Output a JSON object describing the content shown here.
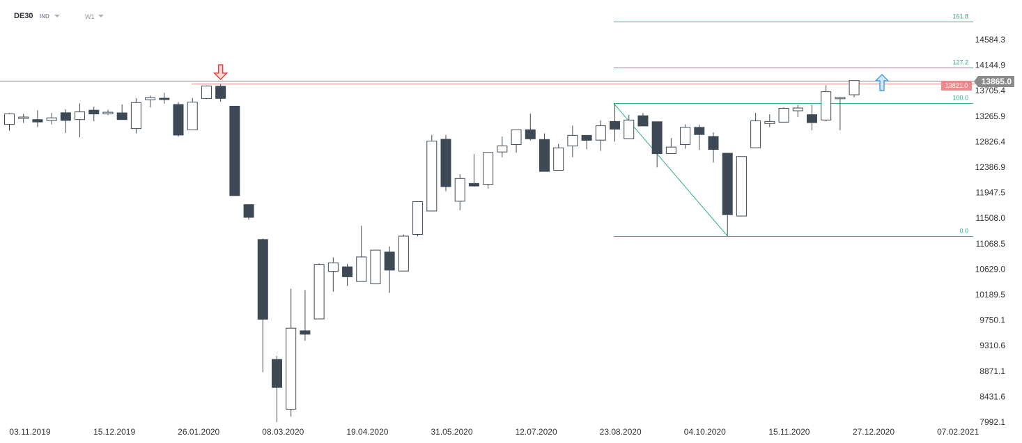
{
  "toolbar": {
    "symbol": "DE30",
    "instrument_type": "IND",
    "timeframe": "W1"
  },
  "price_badges": {
    "current": "13865.0",
    "level": "13821.0"
  },
  "colors": {
    "bear": "#3d4a56",
    "bull": "#ffffff",
    "fib": "#2bb17a",
    "level_line": "#e8858a",
    "current_line": "#888888",
    "current_badge": "#8a8a8a",
    "level_badge": "#ee8a8c",
    "down_arrow": "#e0463f",
    "up_arrow": "#4a9fe8"
  },
  "chart_data": {
    "type": "candlestick",
    "symbol": "DE30",
    "timeframe": "W1",
    "y_ticks": [
      "14584.3",
      "14144.9",
      "13705.4",
      "13265.9",
      "12826.4",
      "12386.9",
      "11947.5",
      "11508.0",
      "11068.5",
      "10629.0",
      "10189.5",
      "9750.1",
      "9310.6",
      "8871.1",
      "8431.6",
      "7992.1"
    ],
    "x_ticks": [
      "03.11.2019",
      "15.12.2019",
      "26.01.2020",
      "08.03.2020",
      "19.04.2020",
      "31.05.2020",
      "12.07.2020",
      "23.08.2020",
      "04.10.2020",
      "15.11.2020",
      "27.12.2020",
      "07.02.2021"
    ],
    "ylim": [
      7992.1,
      14900
    ],
    "current_price": 13865.0,
    "horizontal_level": 13821.0,
    "fibonacci": {
      "levels": [
        {
          "label": "161.8",
          "value": 14900
        },
        {
          "label": "127.2",
          "value": 14109
        },
        {
          "label": "100.0",
          "value": 13487
        },
        {
          "label": "0.0",
          "value": 11203
        }
      ],
      "swing_high_value": 13487,
      "swing_low_value": 11203
    },
    "annotations": [
      {
        "type": "arrow-down",
        "candle": 15
      },
      {
        "type": "arrow-up",
        "candle": 61
      }
    ],
    "candles": [
      {
        "o": 13124,
        "h": 13320,
        "l": 13017,
        "c": 13305
      },
      {
        "o": 13236,
        "h": 13305,
        "l": 13147,
        "c": 13251
      },
      {
        "o": 13207,
        "h": 13370,
        "l": 13079,
        "c": 13166
      },
      {
        "o": 13193,
        "h": 13320,
        "l": 13124,
        "c": 13237
      },
      {
        "o": 13325,
        "h": 13383,
        "l": 12976,
        "c": 13193
      },
      {
        "o": 13207,
        "h": 13488,
        "l": 12904,
        "c": 13340
      },
      {
        "o": 13369,
        "h": 13432,
        "l": 13178,
        "c": 13305
      },
      {
        "o": 13305,
        "h": 13376,
        "l": 13284,
        "c": 13334
      },
      {
        "o": 13323,
        "h": 13470,
        "l": 13207,
        "c": 13207
      },
      {
        "o": 13052,
        "h": 13577,
        "l": 12969,
        "c": 13500
      },
      {
        "o": 13549,
        "h": 13620,
        "l": 13417,
        "c": 13585
      },
      {
        "o": 13576,
        "h": 13668,
        "l": 13483,
        "c": 13563
      },
      {
        "o": 13467,
        "h": 13509,
        "l": 12912,
        "c": 12940
      },
      {
        "o": 13030,
        "h": 13580,
        "l": 13030,
        "c": 13509
      },
      {
        "o": 13571,
        "h": 13795,
        "l": 13561,
        "c": 13787
      },
      {
        "o": 13782,
        "h": 13820,
        "l": 13514,
        "c": 13572
      },
      {
        "o": 13438,
        "h": 13438,
        "l": 11897,
        "c": 11897
      },
      {
        "o": 11742,
        "h": 11742,
        "l": 11480,
        "c": 11522
      },
      {
        "o": 11140,
        "h": 11157,
        "l": 8854,
        "c": 9766
      },
      {
        "o": 9073,
        "h": 9131,
        "l": 7992,
        "c": 8590
      },
      {
        "o": 8215,
        "h": 10290,
        "l": 8085,
        "c": 9611
      },
      {
        "o": 9566,
        "h": 10270,
        "l": 9394,
        "c": 9507
      },
      {
        "o": 9770,
        "h": 10730,
        "l": 9770,
        "c": 10710
      },
      {
        "o": 10590,
        "h": 10833,
        "l": 10240,
        "c": 10738
      },
      {
        "o": 10669,
        "h": 10720,
        "l": 10338,
        "c": 10497
      },
      {
        "o": 10416,
        "h": 11376,
        "l": 10416,
        "c": 10839
      },
      {
        "o": 10375,
        "h": 10947,
        "l": 10375,
        "c": 10957
      },
      {
        "o": 10924,
        "h": 11020,
        "l": 10220,
        "c": 10612
      },
      {
        "o": 10596,
        "h": 11224,
        "l": 10596,
        "c": 11198
      },
      {
        "o": 11228,
        "h": 11747,
        "l": 11193,
        "c": 11793
      },
      {
        "o": 11631,
        "h": 12943,
        "l": 11631,
        "c": 12837
      },
      {
        "o": 12868,
        "h": 12944,
        "l": 11971,
        "c": 12052
      },
      {
        "o": 11800,
        "h": 12264,
        "l": 11645,
        "c": 12191
      },
      {
        "o": 12106,
        "h": 12613,
        "l": 12051,
        "c": 12062
      },
      {
        "o": 12091,
        "h": 12639,
        "l": 12019,
        "c": 12641
      },
      {
        "o": 12649,
        "h": 12915,
        "l": 12555,
        "c": 12753
      },
      {
        "o": 12778,
        "h": 13032,
        "l": 12639,
        "c": 13032
      },
      {
        "o": 13032,
        "h": 13313,
        "l": 12847,
        "c": 12875
      },
      {
        "o": 12864,
        "h": 12970,
        "l": 12314,
        "c": 12314
      },
      {
        "o": 12333,
        "h": 12787,
        "l": 12333,
        "c": 12720
      },
      {
        "o": 12752,
        "h": 13103,
        "l": 12559,
        "c": 12935
      },
      {
        "o": 12935,
        "h": 12935,
        "l": 12695,
        "c": 12850
      },
      {
        "o": 12853,
        "h": 13195,
        "l": 12668,
        "c": 13100
      },
      {
        "o": 13175,
        "h": 13487,
        "l": 12829,
        "c": 13043
      },
      {
        "o": 12879,
        "h": 13290,
        "l": 12879,
        "c": 13199
      },
      {
        "o": 13273,
        "h": 13318,
        "l": 13097,
        "c": 13097
      },
      {
        "o": 13170,
        "h": 13170,
        "l": 12384,
        "c": 12620
      },
      {
        "o": 12622,
        "h": 12889,
        "l": 12622,
        "c": 12733
      },
      {
        "o": 12778,
        "h": 13125,
        "l": 12704,
        "c": 13073
      },
      {
        "o": 13073,
        "h": 13119,
        "l": 12683,
        "c": 12949
      },
      {
        "o": 12916,
        "h": 12986,
        "l": 12466,
        "c": 12692
      },
      {
        "o": 12627,
        "h": 12627,
        "l": 11203,
        "c": 11568
      },
      {
        "o": 11545,
        "h": 12573,
        "l": 11545,
        "c": 12570
      },
      {
        "o": 12722,
        "h": 13324,
        "l": 12722,
        "c": 13186
      },
      {
        "o": 13140,
        "h": 13297,
        "l": 13076,
        "c": 13175
      },
      {
        "o": 13163,
        "h": 13421,
        "l": 13163,
        "c": 13402
      },
      {
        "o": 13359,
        "h": 13459,
        "l": 13250,
        "c": 13407
      },
      {
        "o": 13292,
        "h": 13459,
        "l": 13022,
        "c": 13155
      },
      {
        "o": 13200,
        "h": 13799,
        "l": 13180,
        "c": 13688
      },
      {
        "o": 13578,
        "h": 13598,
        "l": 13022,
        "c": 13590
      },
      {
        "o": 13635,
        "h": 13880,
        "l": 13590,
        "c": 13880
      }
    ]
  }
}
